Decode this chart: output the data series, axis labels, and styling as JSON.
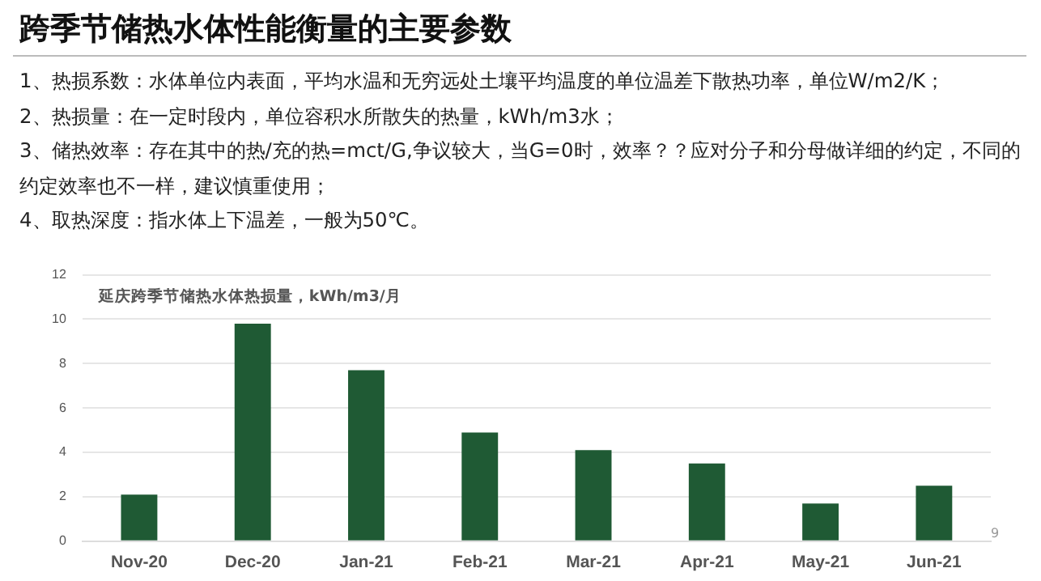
{
  "chart_data": {
    "type": "bar",
    "title": "跨季节储热水体性能衡量的主要参数",
    "subtitle": "延庆跨季节储热水体热损量，kWh/m3/月",
    "annotations": [
      "1、热损系数：水体单位内表面，平均水温和无穷远处土壤平均温度的单位温差下散热功率，单位W/m2/K；",
      "2、热损量：在一定时段内，单位容积水所散失的热量，kWh/m3水；",
      "3、储热效率：存在其中的热/充的热=mct/G,争议较大，当G=0时，效率？？应对分子和分母做详细的约定，不同的约定效率也不一样，建议慎重使用；",
      "4、取热深度：指水体上下温差，一般为50℃。",
      "9"
    ],
    "categories": [
      "Nov-20",
      "Dec-20",
      "Jan-21",
      "Feb-21",
      "Mar-21",
      "Apr-21",
      "May-21",
      "Jun-21"
    ],
    "values": [
      2.1,
      9.8,
      7.7,
      4.9,
      4.1,
      3.5,
      1.7,
      2.5
    ],
    "color": "#1f5a34",
    "ylim": [
      0,
      12
    ],
    "yticks": [
      0,
      2,
      4,
      6,
      8,
      10,
      12
    ],
    "grid": "y"
  }
}
